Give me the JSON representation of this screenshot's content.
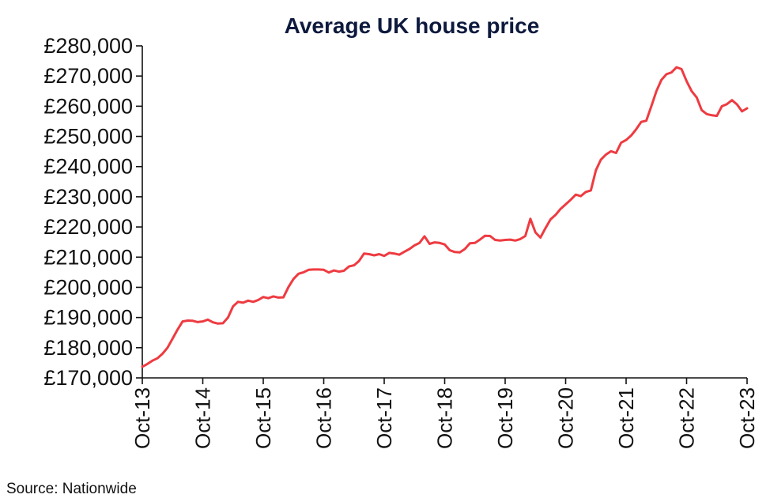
{
  "chart_data": {
    "type": "line",
    "title": "Average UK house price",
    "xlabel": "",
    "ylabel": "",
    "source": "Source: Nationwide",
    "ylim": [
      170000,
      280000
    ],
    "yticks": [
      {
        "value": 170000,
        "label": "£170,000"
      },
      {
        "value": 180000,
        "label": "£180,000"
      },
      {
        "value": 190000,
        "label": "£190,000"
      },
      {
        "value": 200000,
        "label": "£200,000"
      },
      {
        "value": 210000,
        "label": "£210,000"
      },
      {
        "value": 220000,
        "label": "£220,000"
      },
      {
        "value": 230000,
        "label": "£230,000"
      },
      {
        "value": 240000,
        "label": "£240,000"
      },
      {
        "value": 250000,
        "label": "£250,000"
      },
      {
        "value": 260000,
        "label": "£260,000"
      },
      {
        "value": 270000,
        "label": "£270,000"
      },
      {
        "value": 280000,
        "label": "£280,000"
      }
    ],
    "xticks": [
      "Oct-13",
      "Oct-14",
      "Oct-15",
      "Oct-16",
      "Oct-17",
      "Oct-18",
      "Oct-19",
      "Oct-20",
      "Oct-21",
      "Oct-22",
      "Oct-23"
    ],
    "grid": false,
    "colors": {
      "line": "#ee3b41",
      "axis": "#111111",
      "title": "#0d1a3d"
    },
    "series": [
      {
        "x": [
          "2013-10",
          "2013-11",
          "2013-12",
          "2014-01",
          "2014-02",
          "2014-03",
          "2014-04",
          "2014-05",
          "2014-06",
          "2014-07",
          "2014-08",
          "2014-09",
          "2014-10",
          "2014-11",
          "2014-12",
          "2015-01",
          "2015-02",
          "2015-03",
          "2015-04",
          "2015-05",
          "2015-06",
          "2015-07",
          "2015-08",
          "2015-09",
          "2015-10",
          "2015-11",
          "2015-12",
          "2016-01",
          "2016-02",
          "2016-03",
          "2016-04",
          "2016-05",
          "2016-06",
          "2016-07",
          "2016-08",
          "2016-09",
          "2016-10",
          "2016-11",
          "2016-12",
          "2017-01",
          "2017-02",
          "2017-03",
          "2017-04",
          "2017-05",
          "2017-06",
          "2017-07",
          "2017-08",
          "2017-09",
          "2017-10",
          "2017-11",
          "2017-12",
          "2018-01",
          "2018-02",
          "2018-03",
          "2018-04",
          "2018-05",
          "2018-06",
          "2018-07",
          "2018-08",
          "2018-09",
          "2018-10",
          "2018-11",
          "2018-12",
          "2019-01",
          "2019-02",
          "2019-03",
          "2019-04",
          "2019-05",
          "2019-06",
          "2019-07",
          "2019-08",
          "2019-09",
          "2019-10",
          "2019-11",
          "2019-12",
          "2020-01",
          "2020-02",
          "2020-03",
          "2020-04",
          "2020-05",
          "2020-06",
          "2020-07",
          "2020-08",
          "2020-09",
          "2020-10",
          "2020-11",
          "2020-12",
          "2021-01",
          "2021-02",
          "2021-03",
          "2021-04",
          "2021-05",
          "2021-06",
          "2021-07",
          "2021-08",
          "2021-09",
          "2021-10",
          "2021-11",
          "2021-12",
          "2022-01",
          "2022-02",
          "2022-03",
          "2022-04",
          "2022-05",
          "2022-06",
          "2022-07",
          "2022-08",
          "2022-09",
          "2022-10",
          "2022-11",
          "2022-12",
          "2023-01",
          "2023-02",
          "2023-03",
          "2023-04",
          "2023-05",
          "2023-06",
          "2023-07",
          "2023-08",
          "2023-09",
          "2023-10"
        ],
        "values": [
          173700,
          174600,
          175700,
          176500,
          178000,
          180000,
          183000,
          186000,
          188700,
          189000,
          188900,
          188500,
          188700,
          189300,
          188400,
          188000,
          188100,
          190000,
          193700,
          195200,
          194900,
          195600,
          195200,
          195800,
          196800,
          196400,
          197000,
          196600,
          196700,
          200100,
          202800,
          204500,
          205000,
          205800,
          205900,
          205900,
          205800,
          204900,
          205600,
          205200,
          205500,
          206900,
          207300,
          208700,
          211200,
          211000,
          210600,
          211000,
          210400,
          211400,
          211200,
          210800,
          211800,
          212700,
          213900,
          214700,
          216900,
          214400,
          214900,
          214700,
          214200,
          212300,
          211700,
          211600,
          212700,
          214600,
          214700,
          215800,
          217100,
          217000,
          215700,
          215500,
          215700,
          215800,
          215500,
          216000,
          217000,
          222700,
          218200,
          216500,
          219600,
          222500,
          224000,
          226000,
          227500,
          229000,
          230700,
          230200,
          231600,
          232100,
          238800,
          242300,
          244000,
          245100,
          244500,
          247900,
          248800,
          250300,
          252400,
          254800,
          255200,
          260000,
          265000,
          268700,
          270600,
          271200,
          272900,
          272300,
          268300,
          265000,
          262900,
          258700,
          257400,
          257000,
          256800,
          260000,
          260700,
          262000,
          260600,
          258300,
          259300
        ]
      }
    ]
  }
}
